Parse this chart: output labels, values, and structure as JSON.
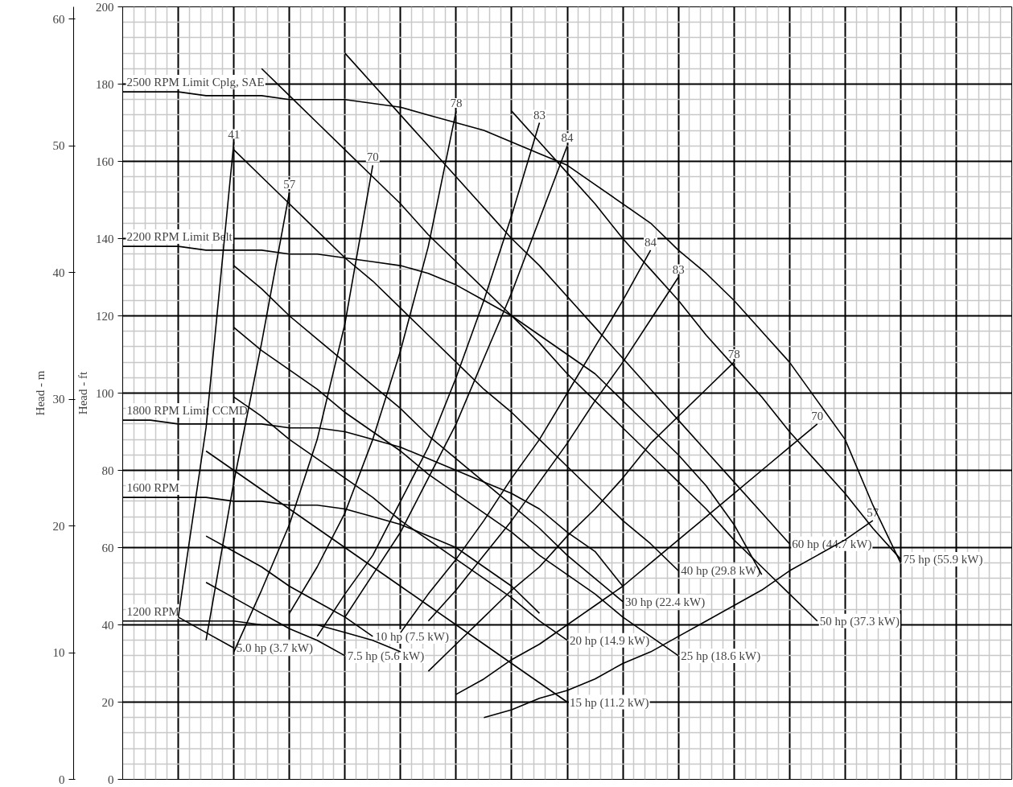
{
  "chart_data": {
    "type": "line",
    "ylabel": "Head - ft",
    "y2label": "Head - m",
    "categories": [
      null,
      null,
      null,
      null,
      null,
      null,
      null,
      null,
      null,
      null,
      null,
      null,
      null,
      null,
      null,
      null,
      null,
      null,
      null,
      null,
      null,
      null,
      null,
      null,
      null,
      null,
      null,
      null,
      null,
      null,
      null,
      null,
      null
    ],
    "ylim": [
      0,
      200
    ],
    "yticks": [
      0,
      20,
      40,
      60,
      80,
      100,
      120,
      140,
      160,
      180,
      200
    ],
    "y2lim": [
      0,
      60.96
    ],
    "y2ticks": [
      0,
      10,
      20,
      30,
      40,
      50,
      60
    ],
    "tick_labels": "y",
    "grid": true,
    "marker": "none",
    "line_style": "solid",
    "series": [
      {
        "name": "2500 RPM Limit Cplg, SAE",
        "color": "#000000",
        "values": [
          178,
          178,
          178,
          177,
          177,
          177,
          176,
          176,
          176,
          175,
          174,
          172,
          170,
          168,
          165,
          162,
          159,
          154,
          149,
          144,
          137,
          131,
          124,
          116,
          108,
          98,
          88,
          71,
          56,
          null,
          null,
          null,
          null
        ]
      },
      {
        "name": "2200 RPM Limit Belt",
        "color": "#000000",
        "values": [
          138,
          138,
          138,
          137,
          137,
          137,
          136,
          136,
          135,
          134,
          133,
          131,
          128,
          124,
          120,
          115,
          110,
          105,
          98,
          91,
          84,
          76,
          66,
          53,
          null,
          null,
          null,
          null,
          null,
          null,
          null,
          null,
          null
        ]
      },
      {
        "name": "1800 RPM Limit CCMD",
        "color": "#000000",
        "values": [
          93,
          93,
          92,
          92,
          92,
          92,
          91,
          91,
          90,
          88,
          86,
          83,
          80,
          77,
          74,
          70,
          64,
          59,
          50,
          null,
          null,
          null,
          null,
          null,
          null,
          null,
          null,
          null,
          null,
          null,
          null,
          null,
          null
        ]
      },
      {
        "name": "1600 RPM",
        "color": "#000000",
        "values": [
          73,
          73,
          73,
          73,
          72,
          72,
          71,
          71,
          70,
          68,
          66,
          63,
          60,
          55,
          50,
          43,
          null,
          null,
          null,
          null,
          null,
          null,
          null,
          null,
          null,
          null,
          null,
          null,
          null,
          null,
          null,
          null,
          null
        ]
      },
      {
        "name": "1200 RPM",
        "color": "#000000",
        "values": [
          41,
          41,
          41,
          41,
          41,
          40,
          40,
          40,
          38,
          36,
          33,
          null,
          null,
          null,
          null,
          null,
          null,
          null,
          null,
          null,
          null,
          null,
          null,
          null,
          null,
          null,
          null,
          null,
          null,
          null,
          null,
          null,
          null
        ]
      },
      {
        "name": "75 hp (55.9 kW)",
        "color": "#000000",
        "values": [
          null,
          null,
          null,
          null,
          null,
          null,
          null,
          null,
          null,
          null,
          null,
          null,
          null,
          null,
          173,
          165,
          157,
          149,
          140,
          132,
          124,
          115,
          107,
          99,
          90,
          82,
          74,
          65,
          57,
          null,
          null,
          null,
          null
        ]
      },
      {
        "name": "60 hp (44.7 kW)",
        "color": "#000000",
        "values": [
          null,
          null,
          null,
          null,
          null,
          null,
          null,
          null,
          188,
          180,
          172,
          164,
          156,
          148,
          140,
          133,
          125,
          117,
          109,
          101,
          93,
          85,
          77,
          69,
          61,
          null,
          null,
          null,
          null,
          null,
          null,
          null,
          null
        ]
      },
      {
        "name": "50 hp (37.3 kW)",
        "color": "#000000",
        "values": [
          null,
          null,
          null,
          null,
          null,
          184,
          177,
          170,
          163,
          156,
          149,
          141,
          134,
          127,
          120,
          113,
          105,
          98,
          91,
          84,
          77,
          70,
          62,
          55,
          48,
          41,
          null,
          null,
          null,
          null,
          null,
          null,
          null
        ]
      },
      {
        "name": "40 hp (29.8 kW)",
        "color": "#000000",
        "values": [
          null,
          null,
          null,
          null,
          163,
          156,
          149,
          142,
          135,
          129,
          122,
          115,
          108,
          101,
          95,
          88,
          81,
          74,
          67,
          61,
          54,
          null,
          null,
          null,
          null,
          null,
          null,
          null,
          null,
          null,
          null,
          null,
          null
        ]
      },
      {
        "name": "30 hp (22.4 kW)",
        "color": "#000000",
        "values": [
          null,
          null,
          null,
          null,
          133,
          127,
          120,
          114,
          108,
          102,
          96,
          89,
          83,
          77,
          71,
          65,
          58,
          52,
          46,
          null,
          null,
          null,
          null,
          null,
          null,
          null,
          null,
          null,
          null,
          null,
          null,
          null,
          null
        ]
      },
      {
        "name": "25 hp (18.6 kW)",
        "color": "#000000",
        "values": [
          null,
          null,
          null,
          null,
          117,
          111,
          106,
          101,
          95,
          90,
          85,
          79,
          74,
          69,
          64,
          58,
          53,
          48,
          42,
          37,
          32,
          null,
          null,
          null,
          null,
          null,
          null,
          null,
          null,
          null,
          null,
          null,
          null
        ]
      },
      {
        "name": "20 hp (14.9 kW)",
        "color": "#000000",
        "values": [
          null,
          null,
          null,
          null,
          99,
          94,
          88,
          83,
          78,
          73,
          67,
          62,
          57,
          52,
          47,
          41,
          36,
          null,
          null,
          null,
          null,
          null,
          null,
          null,
          null,
          null,
          null,
          null,
          null,
          null,
          null,
          null,
          null
        ]
      },
      {
        "name": "15 hp (11.2 kW)",
        "color": "#000000",
        "values": [
          null,
          null,
          null,
          85,
          80,
          75,
          70,
          65,
          60,
          55,
          50,
          45,
          40,
          35,
          30,
          25,
          20,
          null,
          null,
          null,
          null,
          null,
          null,
          null,
          null,
          null,
          null,
          null,
          null,
          null,
          null,
          null,
          null
        ]
      },
      {
        "name": "10 hp (7.5 kW)",
        "color": "#000000",
        "values": [
          null,
          null,
          null,
          63,
          59,
          55,
          50,
          46,
          42,
          37,
          null,
          null,
          null,
          null,
          null,
          null,
          null,
          null,
          null,
          null,
          null,
          null,
          null,
          null,
          null,
          null,
          null,
          null,
          null,
          null,
          null,
          null,
          null
        ]
      },
      {
        "name": "7.5 hp (5.6 kW)",
        "color": "#000000",
        "values": [
          null,
          null,
          null,
          51,
          47,
          43,
          39,
          36,
          32,
          null,
          null,
          null,
          null,
          null,
          null,
          null,
          null,
          null,
          null,
          null,
          null,
          null,
          null,
          null,
          null,
          null,
          null,
          null,
          null,
          null,
          null,
          null,
          null
        ]
      },
      {
        "name": "5.0 hp (3.7 kW)",
        "color": "#000000",
        "values": [
          null,
          null,
          42,
          38,
          34,
          null,
          null,
          null,
          null,
          null,
          null,
          null,
          null,
          null,
          null,
          null,
          null,
          null,
          null,
          null,
          null,
          null,
          null,
          null,
          null,
          null,
          null,
          null,
          null,
          null,
          null,
          null,
          null
        ]
      },
      {
        "name": "41",
        "color": "#000000",
        "values": [
          null,
          null,
          42,
          91,
          165,
          null,
          null,
          null,
          null,
          null,
          null,
          null,
          null,
          null,
          null,
          null,
          null,
          null,
          null,
          null,
          null,
          null,
          null,
          null,
          null,
          null,
          null,
          null,
          null,
          null,
          null,
          null,
          null
        ]
      },
      {
        "name": "57",
        "color": "#000000",
        "values": [
          null,
          null,
          null,
          36,
          77,
          113,
          152,
          null,
          null,
          null,
          null,
          null,
          null,
          null,
          null,
          null,
          null,
          null,
          null,
          null,
          null,
          null,
          null,
          null,
          null,
          null,
          null,
          null,
          null,
          null,
          null,
          null,
          null
        ]
      },
      {
        "name": "70",
        "color": "#000000",
        "values": [
          null,
          null,
          null,
          null,
          33,
          49,
          66,
          88,
          118,
          159,
          null,
          null,
          null,
          null,
          null,
          null,
          null,
          null,
          null,
          null,
          null,
          null,
          null,
          null,
          null,
          null,
          null,
          null,
          null,
          null,
          null,
          null,
          null
        ]
      },
      {
        "name": "78",
        "color": "#000000",
        "values": [
          null,
          null,
          null,
          null,
          null,
          null,
          43,
          55,
          69,
          88,
          111,
          138,
          173,
          null,
          null,
          null,
          null,
          null,
          null,
          null,
          null,
          null,
          null,
          null,
          null,
          null,
          null,
          null,
          null,
          null,
          null,
          null,
          null
        ]
      },
      {
        "name": "83",
        "color": "#000000",
        "values": [
          null,
          null,
          null,
          null,
          null,
          null,
          null,
          37,
          48,
          58,
          72,
          86,
          104,
          124,
          146,
          170,
          null,
          null,
          null,
          null,
          null,
          null,
          null,
          null,
          null,
          null,
          null,
          null,
          null,
          null,
          null,
          null,
          null
        ]
      },
      {
        "name": "84",
        "color": "#000000",
        "values": [
          null,
          null,
          null,
          null,
          null,
          null,
          null,
          null,
          42,
          53,
          64,
          78,
          92,
          109,
          126,
          145,
          164,
          null,
          null,
          null,
          null,
          null,
          null,
          null,
          null,
          null,
          null,
          null,
          null,
          null,
          null,
          null,
          null
        ]
      },
      {
        "name": "84",
        "color": "#000000",
        "values": [
          null,
          null,
          null,
          null,
          null,
          null,
          null,
          null,
          null,
          null,
          38,
          48,
          57,
          67,
          78,
          88,
          100,
          112,
          124,
          137,
          null,
          null,
          null,
          null,
          null,
          null,
          null,
          null,
          null,
          null,
          null,
          null,
          null
        ]
      },
      {
        "name": "83",
        "color": "#000000",
        "values": [
          null,
          null,
          null,
          null,
          null,
          null,
          null,
          null,
          null,
          null,
          null,
          41,
          49,
          58,
          67,
          77,
          87,
          98,
          108,
          119,
          130,
          null,
          null,
          null,
          null,
          null,
          null,
          null,
          null,
          null,
          null,
          null,
          null
        ]
      },
      {
        "name": "78",
        "color": "#000000",
        "values": [
          null,
          null,
          null,
          null,
          null,
          null,
          null,
          null,
          null,
          null,
          null,
          28,
          35,
          42,
          49,
          55,
          63,
          70,
          78,
          87,
          94,
          101,
          108,
          null,
          null,
          null,
          null,
          null,
          null,
          null,
          null,
          null,
          null
        ]
      },
      {
        "name": "70",
        "color": "#000000",
        "values": [
          null,
          null,
          null,
          null,
          null,
          null,
          null,
          null,
          null,
          null,
          null,
          null,
          22,
          26,
          31,
          35,
          40,
          45,
          50,
          56,
          62,
          68,
          74,
          80,
          86,
          92,
          null,
          null,
          null,
          null,
          null,
          null,
          null
        ]
      },
      {
        "name": "57",
        "color": "#000000",
        "values": [
          null,
          null,
          null,
          null,
          null,
          null,
          null,
          null,
          null,
          null,
          null,
          null,
          null,
          16,
          18,
          21,
          23,
          26,
          30,
          33,
          37,
          41,
          45,
          49,
          54,
          58,
          62,
          67,
          null,
          null,
          null,
          null,
          null
        ]
      }
    ]
  }
}
